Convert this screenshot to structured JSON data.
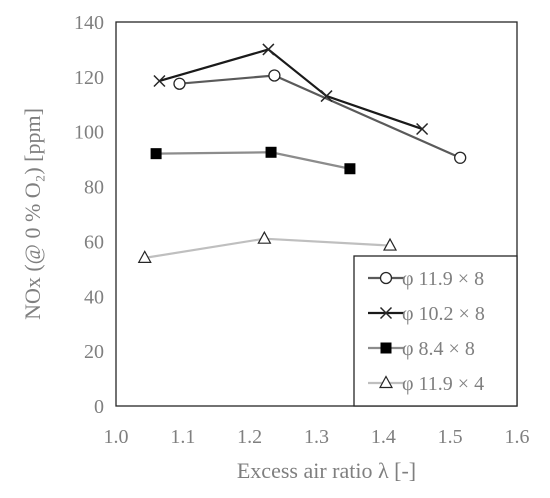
{
  "chart_data": {
    "type": "line",
    "xlabel": "Excess air ratio λ [-]",
    "ylabel": "NOx (@ 0 % O₂)  [ppm]",
    "xlim": [
      1.0,
      1.6
    ],
    "ylim": [
      0,
      140
    ],
    "x_ticks": [
      "1.0",
      "1.1",
      "1.2",
      "1.3",
      "1.4",
      "1.5",
      "1.6"
    ],
    "y_ticks": [
      "0",
      "20",
      "40",
      "60",
      "80",
      "100",
      "120",
      "140"
    ],
    "grid": false,
    "legend_position": "bottom-right",
    "series": [
      {
        "name": "φ 11.9 × 8",
        "marker": "circle-open",
        "color": "#5a5a5a",
        "points": [
          [
            1.095,
            117.5
          ],
          [
            1.237,
            120.5
          ],
          [
            1.515,
            90.5
          ]
        ]
      },
      {
        "name": "φ 10.2 × 8",
        "marker": "x",
        "color": "#1a1a1a",
        "points": [
          [
            1.065,
            118.5
          ],
          [
            1.228,
            130.0
          ],
          [
            1.315,
            113.0
          ],
          [
            1.458,
            101.0
          ]
        ]
      },
      {
        "name": "φ 8.4 × 8",
        "marker": "square-filled",
        "color": "#8c8c8c",
        "points": [
          [
            1.06,
            92.0
          ],
          [
            1.232,
            92.5
          ],
          [
            1.35,
            86.5
          ]
        ]
      },
      {
        "name": "φ 11.9 × 4",
        "marker": "triangle-open",
        "color": "#bfbfbf",
        "points": [
          [
            1.043,
            54.0
          ],
          [
            1.222,
            61.0
          ],
          [
            1.41,
            58.5
          ]
        ]
      }
    ]
  }
}
